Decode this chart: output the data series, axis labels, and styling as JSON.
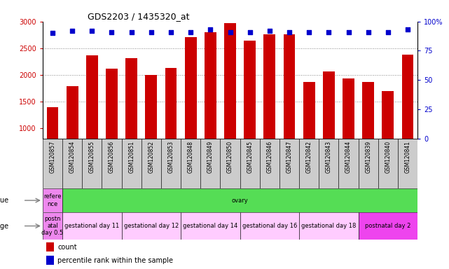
{
  "title": "GDS2203 / 1435320_at",
  "samples": [
    "GSM120857",
    "GSM120854",
    "GSM120855",
    "GSM120856",
    "GSM120851",
    "GSM120852",
    "GSM120853",
    "GSM120848",
    "GSM120849",
    "GSM120850",
    "GSM120845",
    "GSM120846",
    "GSM120847",
    "GSM120842",
    "GSM120843",
    "GSM120844",
    "GSM120839",
    "GSM120840",
    "GSM120841"
  ],
  "counts": [
    1390,
    1780,
    2360,
    2110,
    2310,
    2000,
    2130,
    2700,
    2800,
    2970,
    2640,
    2760,
    2760,
    1870,
    2060,
    1930,
    1860,
    1690,
    2380
  ],
  "percentiles": [
    90,
    92,
    92,
    91,
    91,
    91,
    91,
    91,
    93,
    91,
    91,
    92,
    91,
    91,
    91,
    91,
    91,
    91,
    93
  ],
  "bar_color": "#cc0000",
  "percentile_color": "#0000cc",
  "ylim_left": [
    800,
    3000
  ],
  "ylim_right": [
    0,
    100
  ],
  "yticks_left": [
    1000,
    1500,
    2000,
    2500,
    3000
  ],
  "yticks_right": [
    0,
    25,
    50,
    75,
    100
  ],
  "grid_values": [
    1500,
    2000,
    2500
  ],
  "grid_color": "#888888",
  "background_color": "#ffffff",
  "xticklabel_bg": "#cccccc",
  "tissue_row": {
    "label": "tissue",
    "cells": [
      {
        "text": "refere\nnce",
        "color": "#ee88ee",
        "span": 1
      },
      {
        "text": "ovary",
        "color": "#55dd55",
        "span": 18
      }
    ]
  },
  "age_row": {
    "label": "age",
    "cells": [
      {
        "text": "postn\natal\nday 0.5",
        "color": "#ee88ee",
        "span": 1
      },
      {
        "text": "gestational day 11",
        "color": "#ffccff",
        "span": 3
      },
      {
        "text": "gestational day 12",
        "color": "#ffccff",
        "span": 3
      },
      {
        "text": "gestational day 14",
        "color": "#ffccff",
        "span": 3
      },
      {
        "text": "gestational day 16",
        "color": "#ffccff",
        "span": 3
      },
      {
        "text": "gestational day 18",
        "color": "#ffccff",
        "span": 3
      },
      {
        "text": "postnatal day 2",
        "color": "#ee44ee",
        "span": 3
      }
    ]
  },
  "legend_items": [
    {
      "label": "count",
      "color": "#cc0000"
    },
    {
      "label": "percentile rank within the sample",
      "color": "#0000cc"
    }
  ]
}
